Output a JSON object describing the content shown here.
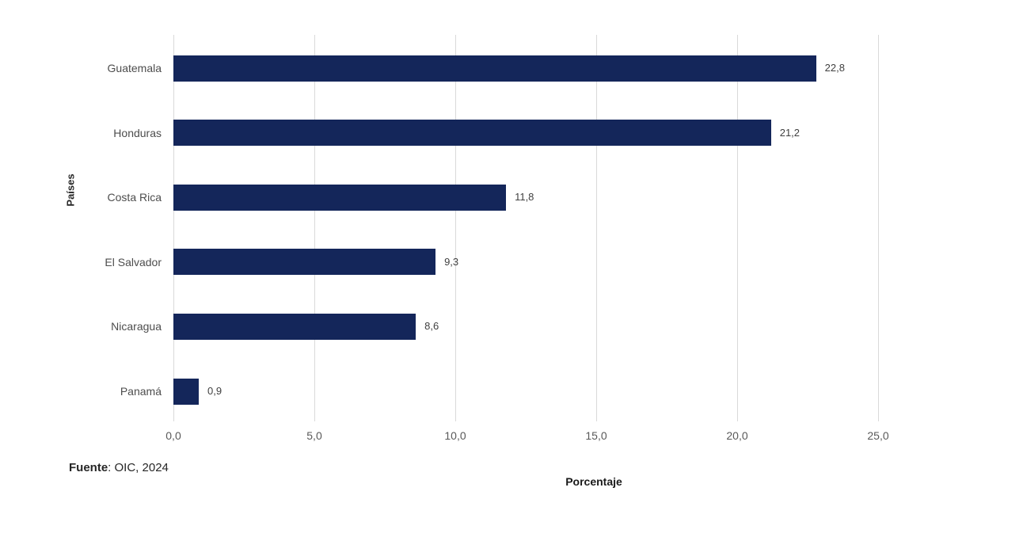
{
  "chart_data": {
    "type": "bar",
    "orientation": "horizontal",
    "categories": [
      "Guatemala",
      "Honduras",
      "Costa Rica",
      "El Salvador",
      "Nicaragua",
      "Panamá"
    ],
    "values": [
      22.8,
      21.2,
      11.8,
      9.3,
      8.6,
      0.9
    ],
    "value_labels": [
      "22,8",
      "21,2",
      "11,8",
      "9,3",
      "8,6",
      "0,9"
    ],
    "xlabel": "Porcentaje",
    "ylabel": "Países",
    "xlim": [
      0,
      25
    ],
    "x_ticks": [
      0,
      5,
      10,
      15,
      20,
      25
    ],
    "x_tick_labels": [
      "0,0",
      "5,0",
      "10,0",
      "15,0",
      "20,0",
      "25,0"
    ],
    "grid": "vertical-only",
    "legend": "none",
    "bar_color": "#14265a"
  },
  "source": {
    "label": "Fuente",
    "text": ": OIC, 2024"
  },
  "colors": {
    "bar": "#14265a",
    "gridline": "#d9d9d9",
    "tick_text": "#595959",
    "label_text": "#4d4d4d"
  }
}
